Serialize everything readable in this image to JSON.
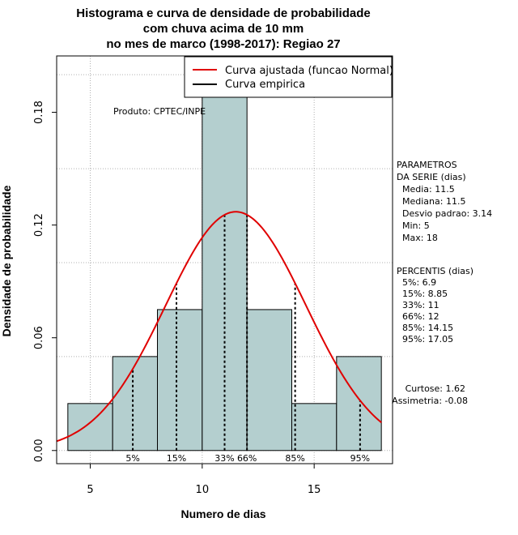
{
  "chart_data": {
    "type": "bar",
    "title_lines": [
      "Histograma e curva de densidade de probabilidade",
      "com chuva acima de 10 mm",
      "no mes de marco (1998-2017): Regiao 27"
    ],
    "xlabel": "Numero de dias",
    "ylabel": "Densidade de probabilidade",
    "xlim": [
      3.5,
      18.5
    ],
    "ylim": [
      -0.007,
      0.21
    ],
    "x_ticks": [
      5,
      10,
      15
    ],
    "y_ticks": [
      0.0,
      0.06,
      0.12,
      0.18
    ],
    "y_tick_labels": [
      "0.00",
      "0.06",
      "0.12",
      "0.18"
    ],
    "x_grid": [
      5,
      10,
      15
    ],
    "y_grid": [
      0.0,
      0.05,
      0.1,
      0.15,
      0.2
    ],
    "bins": [
      {
        "x0": 4,
        "x1": 6,
        "density": 0.025
      },
      {
        "x0": 6,
        "x1": 8,
        "density": 0.05
      },
      {
        "x0": 8,
        "x1": 10,
        "density": 0.075
      },
      {
        "x0": 10,
        "x1": 12,
        "density": 0.2
      },
      {
        "x0": 12,
        "x1": 14,
        "density": 0.075
      },
      {
        "x0": 14,
        "x1": 16,
        "density": 0.025
      },
      {
        "x0": 16,
        "x1": 18,
        "density": 0.05
      }
    ],
    "normal_fit": {
      "mean": 11.5,
      "sd": 3.14,
      "x_from": 3.5,
      "x_to": 18.0
    },
    "percentiles": [
      {
        "label": "5%",
        "value": 6.9
      },
      {
        "label": "15%",
        "value": 8.85
      },
      {
        "label": "33%",
        "value": 11
      },
      {
        "label": "66%",
        "value": 12
      },
      {
        "label": "85%",
        "value": 14.15
      },
      {
        "label": "95%",
        "value": 17.05
      }
    ],
    "legend": [
      {
        "label": "Curva ajustada (funcao Normal)",
        "color": "#e00000"
      },
      {
        "label": "Curva empirica",
        "color": "#000000"
      }
    ],
    "legend_position": "top-right",
    "annotation": "Produto: CPTEC/INPE",
    "colors": {
      "bar_fill": "#b4cfcf",
      "bar_stroke": "#000000",
      "curve": "#e00000",
      "grid": "#b0b0b0"
    }
  },
  "side_panel": {
    "parametros_lines": [
      "PARAMETROS",
      "DA SERIE (dias)",
      "  Media: 11.5",
      "  Mediana: 11.5",
      "  Desvio padrao: 3.14",
      "  Min: 5",
      "  Max: 18"
    ],
    "percentis_lines": [
      "PERCENTIS (dias)",
      "  5%: 6.9",
      "  15%: 8.85",
      "  33%: 11",
      "  66%: 12",
      "  85%: 14.15",
      "  95%: 17.05"
    ],
    "shape_lines": [
      "Curtose: 1.62",
      "Assimetria: -0.08"
    ]
  }
}
